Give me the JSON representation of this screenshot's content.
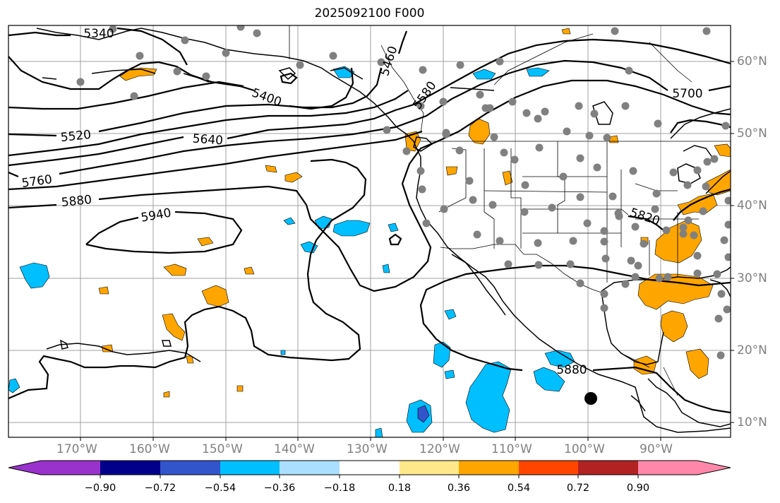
{
  "title": "2025092100 F000",
  "colors": {
    "contour": "#000000",
    "grid": "#a0a0a0",
    "coast": "#000000",
    "station_dot": "#808080",
    "marker": "#000000",
    "ocean": "#ffffff"
  },
  "lat_labels": [
    "60°N",
    "50°N",
    "40°N",
    "30°N",
    "20°N",
    "10°N"
  ],
  "lon_labels": [
    "170°W",
    "160°W",
    "150°W",
    "140°W",
    "130°W",
    "120°W",
    "110°W",
    "100°W",
    "90°W"
  ],
  "contour_labels": [
    "5340",
    "5400",
    "5460",
    "5520",
    "5580",
    "5640",
    "5700",
    "5760",
    "5820",
    "5880",
    "5940",
    "5880"
  ],
  "colorbar": {
    "tick_labels": [
      "−0.90",
      "−0.72",
      "−0.54",
      "−0.36",
      "−0.18",
      "0.18",
      "0.36",
      "0.54",
      "0.72",
      "0.90"
    ],
    "bin_colors": [
      "#9932cc",
      "#00008b",
      "#3355cc",
      "#00bfff",
      "#aadfff",
      "#ffffff",
      "#ffe88a",
      "#ffa500",
      "#ff4500",
      "#b22222",
      "#ff88aa"
    ]
  }
}
